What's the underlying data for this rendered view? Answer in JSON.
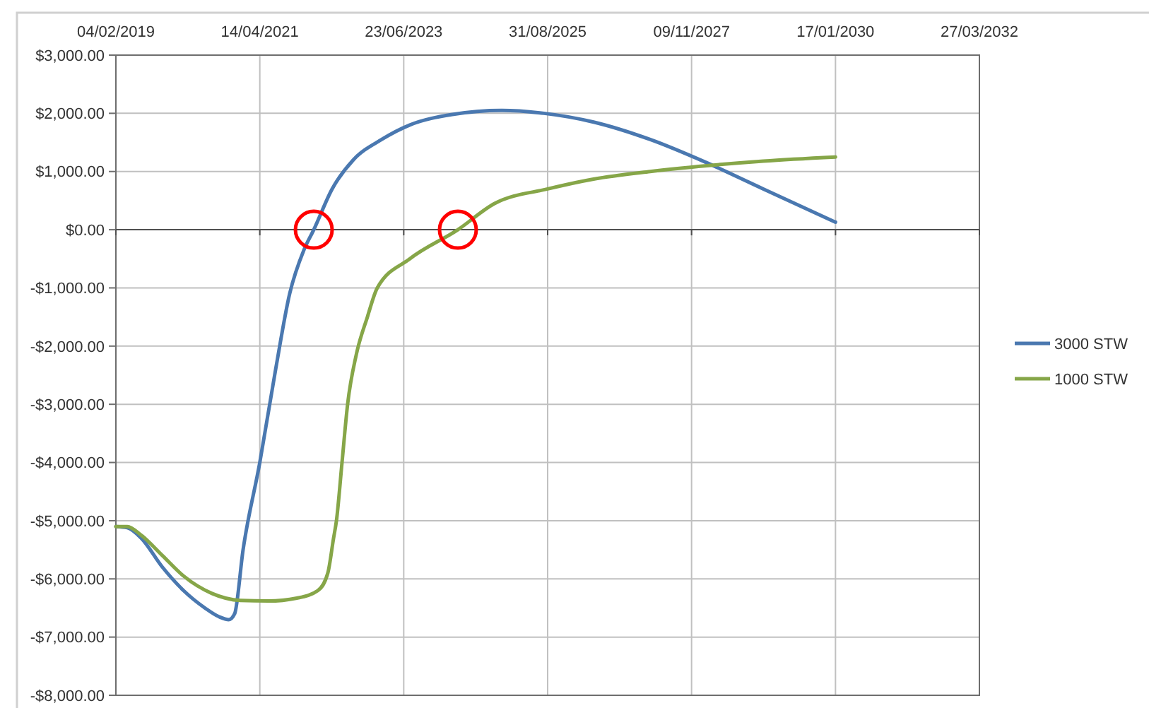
{
  "chart_data": {
    "type": "line",
    "xlim": [
      "2019-02-04",
      "2032-03-27"
    ],
    "xticks": [
      {
        "value": "2019-02-04",
        "label": "04/02/2019"
      },
      {
        "value": "2021-04-14",
        "label": "14/04/2021"
      },
      {
        "value": "2023-06-23",
        "label": "23/06/2023"
      },
      {
        "value": "2025-08-31",
        "label": "31/08/2025"
      },
      {
        "value": "2027-11-09",
        "label": "09/11/2027"
      },
      {
        "value": "2030-01-17",
        "label": "17/01/2030"
      },
      {
        "value": "2032-03-27",
        "label": "27/03/2032"
      }
    ],
    "ylim": [
      -8000,
      3000
    ],
    "yticks": [
      {
        "value": 3000,
        "label": "$3,000.00"
      },
      {
        "value": 2000,
        "label": "$2,000.00"
      },
      {
        "value": 1000,
        "label": "$1,000.00"
      },
      {
        "value": 0,
        "label": "$0.00"
      },
      {
        "value": -1000,
        "label": "-$1,000.00"
      },
      {
        "value": -2000,
        "label": "-$2,000.00"
      },
      {
        "value": -3000,
        "label": "-$3,000.00"
      },
      {
        "value": -4000,
        "label": "-$4,000.00"
      },
      {
        "value": -5000,
        "label": "-$5,000.00"
      },
      {
        "value": -6000,
        "label": "-$6,000.00"
      },
      {
        "value": -7000,
        "label": "-$7,000.00"
      },
      {
        "value": -8000,
        "label": "-$8,000.00"
      }
    ],
    "grid": true,
    "legend": "right",
    "marker": "none",
    "line_style": "solid",
    "series": [
      {
        "name": "3000 STW",
        "color": "#4a78b0",
        "x": [
          "2019-02-04",
          "2019-04-08",
          "2019-06-25",
          "2019-10-21",
          "2020-02-15",
          "2020-06-13",
          "2020-08-30",
          "2020-10-24",
          "2020-11-25",
          "2021-01-11",
          "2021-04-14",
          "2021-07-11",
          "2021-09-27",
          "2021-12-15",
          "2022-02-08",
          "2022-05-21",
          "2022-09-16",
          "2023-02-20",
          "2023-07-27",
          "2024-03-19",
          "2024-12-19",
          "2025-08-11",
          "2026-05-13",
          "2027-03-24",
          "2028-02-02",
          "2028-12-12",
          "2030-01-17"
        ],
        "values": [
          -5100,
          -5120,
          -5300,
          -5800,
          -6200,
          -6500,
          -6650,
          -6700,
          -6600,
          -5500,
          -4000,
          -2400,
          -1100,
          -350,
          0,
          700,
          1200,
          1550,
          1800,
          1980,
          2050,
          2000,
          1850,
          1550,
          1150,
          700,
          130
        ]
      },
      {
        "name": "1000 STW",
        "color": "#86a648",
        "x": [
          "2019-02-04",
          "2019-04-08",
          "2019-06-25",
          "2019-10-21",
          "2020-02-15",
          "2020-07-22",
          "2020-12-26",
          "2021-06-01",
          "2021-11-06",
          "2022-03-03",
          "2022-04-27",
          "2022-05-29",
          "2022-06-14",
          "2022-07-15",
          "2022-08-15",
          "2022-10-02",
          "2022-12-03",
          "2023-01-27",
          "2023-07-27",
          "2024-04-19",
          "2024-11-09",
          "2025-08-31",
          "2026-05-13",
          "2027-03-24",
          "2028-02-02",
          "2028-12-12",
          "2030-01-17"
        ],
        "values": [
          -5100,
          -5100,
          -5250,
          -5600,
          -5950,
          -6250,
          -6370,
          -6380,
          -6330,
          -6200,
          -5900,
          -5300,
          -5000,
          -4000,
          -3000,
          -2150,
          -1500,
          -1000,
          -500,
          0,
          450,
          700,
          870,
          1000,
          1100,
          1180,
          1250
        ]
      }
    ]
  }
}
